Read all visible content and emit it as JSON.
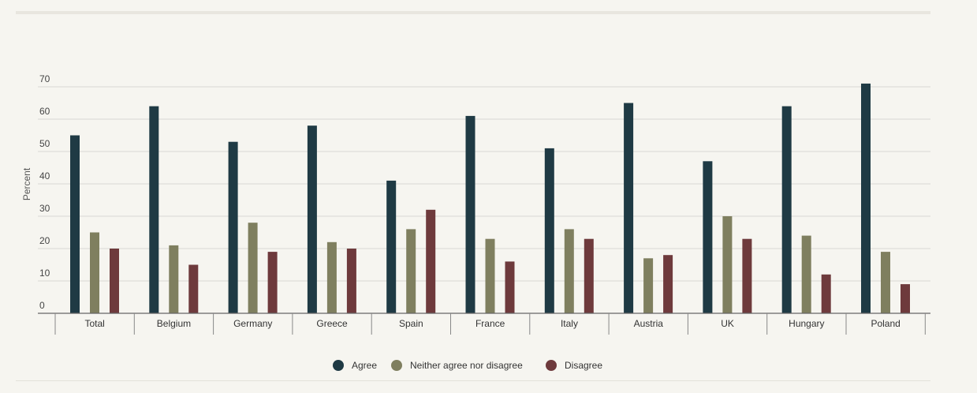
{
  "chart_data": {
    "type": "bar",
    "ylabel": "Percent",
    "ylim": [
      0,
      70
    ],
    "yticks": [
      0,
      10,
      20,
      30,
      40,
      50,
      60,
      70
    ],
    "grid": true,
    "legend_position": "bottom-center",
    "categories": [
      "Total",
      "Belgium",
      "Germany",
      "Greece",
      "Spain",
      "France",
      "Italy",
      "Austria",
      "UK",
      "Hungary",
      "Poland"
    ],
    "series": [
      {
        "name": "Agree",
        "color": "#1f3a44",
        "values": [
          55,
          64,
          53,
          58,
          41,
          61,
          51,
          65,
          47,
          64,
          71
        ]
      },
      {
        "name": "Neither agree nor disagree",
        "color": "#7f7f5f",
        "values": [
          25,
          21,
          28,
          22,
          26,
          23,
          26,
          17,
          30,
          24,
          19
        ]
      },
      {
        "name": "Disagree",
        "color": "#6e3a3c",
        "values": [
          20,
          15,
          19,
          20,
          32,
          16,
          23,
          18,
          23,
          12,
          9
        ]
      }
    ]
  }
}
